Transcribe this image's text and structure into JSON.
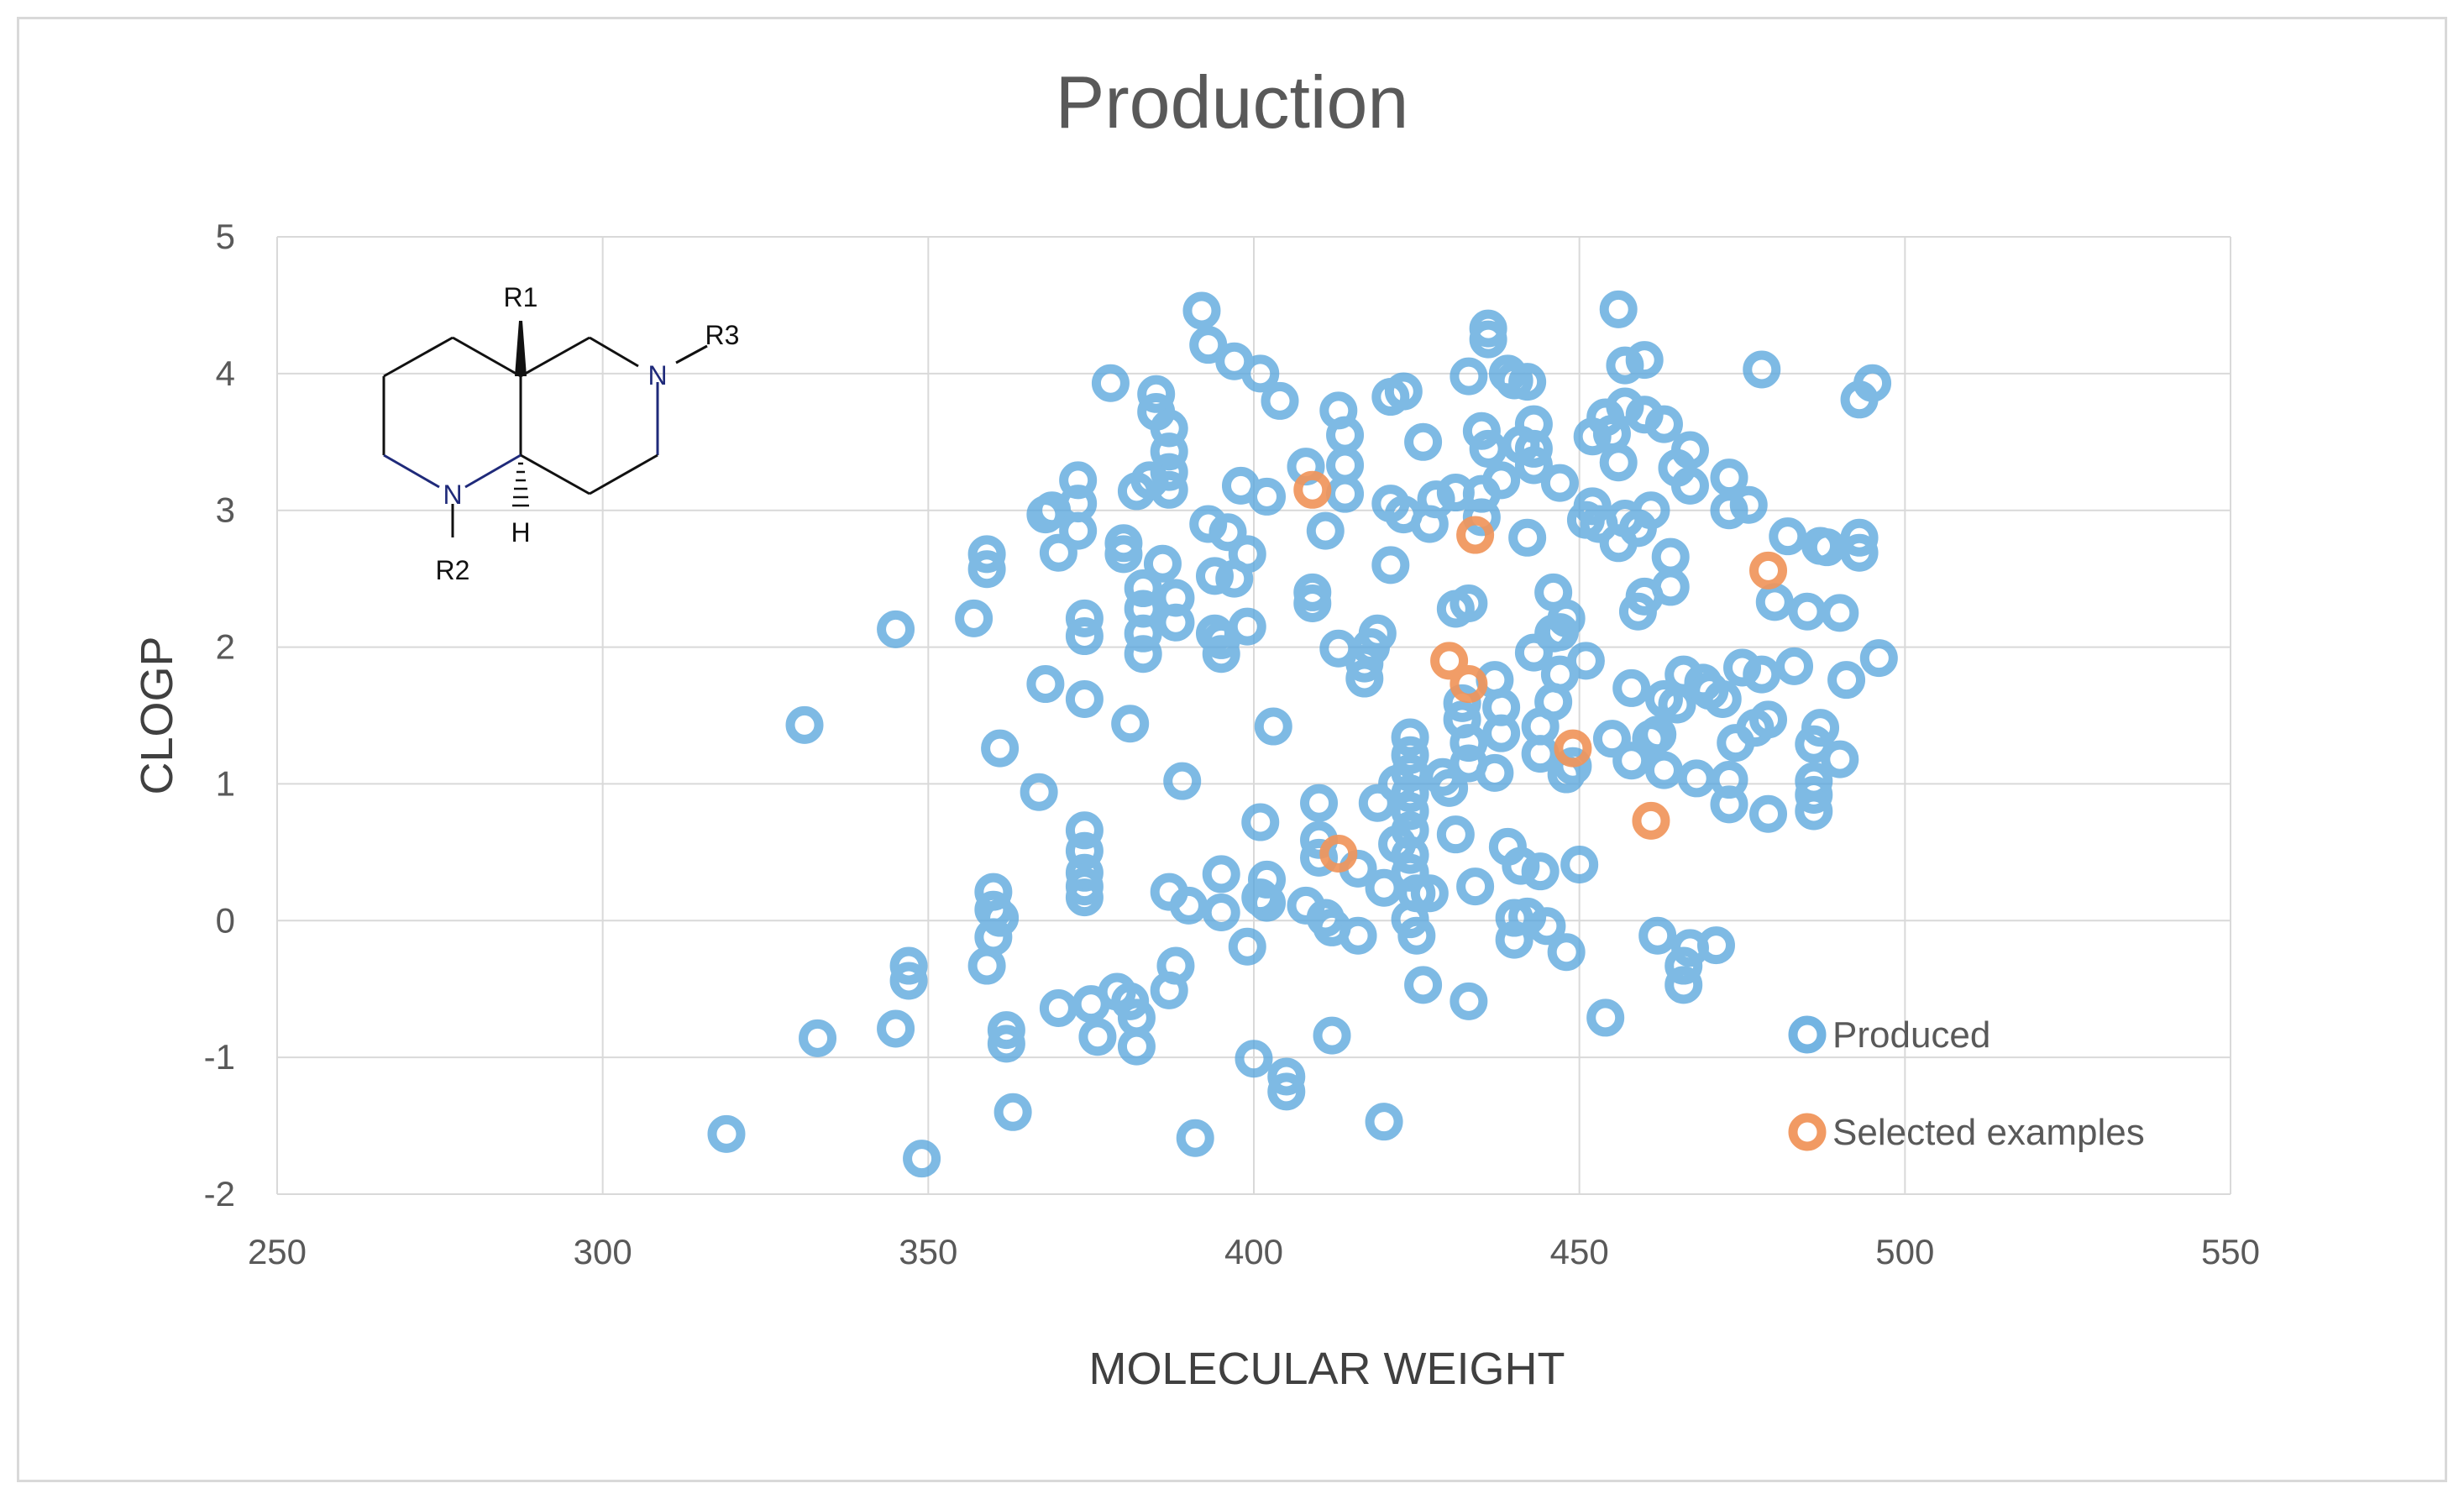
{
  "chart_data": {
    "type": "scatter",
    "title": "Production",
    "xlabel": "MOLECULAR WEIGHT",
    "ylabel": "CLOGP",
    "xlim": [
      250,
      550
    ],
    "ylim": [
      -2,
      5
    ],
    "xticks": [
      "250",
      "300",
      "350",
      "400",
      "450",
      "500",
      "550"
    ],
    "yticks": [
      "-2",
      "-1",
      "0",
      "1",
      "2",
      "3",
      "4",
      "5"
    ],
    "grid": true,
    "legend_position": "bottom-right",
    "colors": {
      "produced": "#5aa7dd",
      "selected": "#f0955b",
      "grid": "#d9d9d9"
    },
    "structure_labels": {
      "r1": "R1",
      "r2": "R2",
      "r3": "R3",
      "n1": "N",
      "n2": "N",
      "h": "H"
    },
    "series": [
      {
        "name": "Produced",
        "points": [
          [
            319,
            -1.56
          ],
          [
            331,
            1.43
          ],
          [
            333,
            -0.86
          ],
          [
            345,
            -0.79
          ],
          [
            345,
            2.13
          ],
          [
            347,
            -0.33
          ],
          [
            347,
            -0.44
          ],
          [
            349,
            -1.74
          ],
          [
            357,
            2.21
          ],
          [
            359,
            2.68
          ],
          [
            359,
            2.57
          ],
          [
            359,
            -0.33
          ],
          [
            360,
            0.21
          ],
          [
            360,
            0.08
          ],
          [
            360,
            -0.12
          ],
          [
            361,
            1.26
          ],
          [
            361,
            0.02
          ],
          [
            362,
            -0.8
          ],
          [
            362,
            -0.9
          ],
          [
            363,
            -1.4
          ],
          [
            367,
            0.94
          ],
          [
            368,
            1.73
          ],
          [
            368,
            2.97
          ],
          [
            369,
            3.0
          ],
          [
            370,
            -0.64
          ],
          [
            370,
            2.69
          ],
          [
            373,
            3.22
          ],
          [
            373,
            3.05
          ],
          [
            373,
            2.85
          ],
          [
            374,
            2.21
          ],
          [
            374,
            2.08
          ],
          [
            374,
            1.62
          ],
          [
            374,
            0.66
          ],
          [
            374,
            0.51
          ],
          [
            374,
            0.35
          ],
          [
            374,
            0.25
          ],
          [
            374,
            0.17
          ],
          [
            375,
            -0.61
          ],
          [
            376,
            -0.85
          ],
          [
            378,
            3.93
          ],
          [
            379,
            -0.52
          ],
          [
            380,
            2.76
          ],
          [
            380,
            2.68
          ],
          [
            381,
            1.44
          ],
          [
            381,
            -0.59
          ],
          [
            382,
            3.14
          ],
          [
            382,
            -0.71
          ],
          [
            382,
            -0.92
          ],
          [
            383,
            2.43
          ],
          [
            383,
            2.28
          ],
          [
            383,
            2.1
          ],
          [
            383,
            1.95
          ],
          [
            384,
            3.22
          ],
          [
            385,
            3.85
          ],
          [
            385,
            3.72
          ],
          [
            386,
            2.61
          ],
          [
            387,
            3.6
          ],
          [
            387,
            3.43
          ],
          [
            387,
            3.28
          ],
          [
            387,
            3.15
          ],
          [
            387,
            0.21
          ],
          [
            387,
            -0.51
          ],
          [
            388,
            -0.33
          ],
          [
            388,
            2.36
          ],
          [
            388,
            2.18
          ],
          [
            389,
            1.02
          ],
          [
            390,
            0.11
          ],
          [
            391,
            -1.59
          ],
          [
            392,
            4.46
          ],
          [
            393,
            4.21
          ],
          [
            393,
            2.9
          ],
          [
            394,
            2.52
          ],
          [
            394,
            2.1
          ],
          [
            395,
            2.05
          ],
          [
            395,
            1.95
          ],
          [
            395,
            0.34
          ],
          [
            395,
            0.06
          ],
          [
            396,
            2.84
          ],
          [
            397,
            2.5
          ],
          [
            397,
            4.09
          ],
          [
            398,
            3.18
          ],
          [
            399,
            2.68
          ],
          [
            399,
            2.15
          ],
          [
            399,
            -0.19
          ],
          [
            400,
            -1.01
          ],
          [
            401,
            0.72
          ],
          [
            401,
            0.17
          ],
          [
            401,
            4.0
          ],
          [
            402,
            3.1
          ],
          [
            402,
            0.3
          ],
          [
            402,
            0.13
          ],
          [
            403,
            1.42
          ],
          [
            404,
            3.8
          ],
          [
            405,
            -1.14
          ],
          [
            405,
            -1.25
          ],
          [
            408,
            3.32
          ],
          [
            408,
            0.11
          ],
          [
            409,
            2.4
          ],
          [
            409,
            2.32
          ],
          [
            410,
            0.86
          ],
          [
            410,
            0.59
          ],
          [
            410,
            0.46
          ],
          [
            411,
            2.85
          ],
          [
            411,
            0.02
          ],
          [
            412,
            -0.05
          ],
          [
            412,
            -0.84
          ],
          [
            413,
            1.99
          ],
          [
            413,
            3.73
          ],
          [
            414,
            3.55
          ],
          [
            414,
            3.33
          ],
          [
            414,
            3.12
          ],
          [
            416,
            0.38
          ],
          [
            416,
            -0.11
          ],
          [
            417,
            1.88
          ],
          [
            417,
            1.77
          ],
          [
            418,
            2.0
          ],
          [
            419,
            2.1
          ],
          [
            419,
            0.86
          ],
          [
            420,
            -1.47
          ],
          [
            420,
            0.24
          ],
          [
            421,
            3.05
          ],
          [
            421,
            2.6
          ],
          [
            421,
            3.83
          ],
          [
            422,
            0.56
          ],
          [
            422,
            1.0
          ],
          [
            423,
            3.87
          ],
          [
            423,
            2.97
          ],
          [
            424,
            1.34
          ],
          [
            424,
            1.21
          ],
          [
            424,
            1.08
          ],
          [
            424,
            0.93
          ],
          [
            424,
            0.8
          ],
          [
            424,
            0.66
          ],
          [
            424,
            0.48
          ],
          [
            424,
            0.35
          ],
          [
            424,
            0.01
          ],
          [
            425,
            -0.11
          ],
          [
            425,
            0.2
          ],
          [
            426,
            3.5
          ],
          [
            426,
            -0.47
          ],
          [
            427,
            2.9
          ],
          [
            427,
            0.2
          ],
          [
            428,
            3.08
          ],
          [
            429,
            1.05
          ],
          [
            430,
            0.97
          ],
          [
            431,
            0.63
          ],
          [
            431,
            3.13
          ],
          [
            431,
            2.28
          ],
          [
            432,
            1.59
          ],
          [
            432,
            1.47
          ],
          [
            433,
            1.3
          ],
          [
            433,
            1.15
          ],
          [
            433,
            3.98
          ],
          [
            433,
            2.32
          ],
          [
            433,
            -0.59
          ],
          [
            434,
            0.25
          ],
          [
            435,
            2.95
          ],
          [
            435,
            3.12
          ],
          [
            435,
            3.58
          ],
          [
            436,
            3.45
          ],
          [
            436,
            4.33
          ],
          [
            436,
            4.25
          ],
          [
            437,
            1.76
          ],
          [
            437,
            1.08
          ],
          [
            438,
            1.56
          ],
          [
            438,
            1.37
          ],
          [
            438,
            3.22
          ],
          [
            439,
            0.54
          ],
          [
            439,
            4.0
          ],
          [
            440,
            3.95
          ],
          [
            440,
            0.02
          ],
          [
            440,
            -0.14
          ],
          [
            441,
            0.4
          ],
          [
            441,
            3.48
          ],
          [
            442,
            3.94
          ],
          [
            442,
            0.03
          ],
          [
            442,
            2.8
          ],
          [
            443,
            3.63
          ],
          [
            443,
            3.45
          ],
          [
            443,
            3.33
          ],
          [
            443,
            1.96
          ],
          [
            444,
            1.42
          ],
          [
            444,
            1.22
          ],
          [
            444,
            0.36
          ],
          [
            445,
            -0.04
          ],
          [
            446,
            2.4
          ],
          [
            446,
            2.1
          ],
          [
            446,
            1.6
          ],
          [
            447,
            1.8
          ],
          [
            447,
            3.2
          ],
          [
            447,
            2.11
          ],
          [
            448,
            2.21
          ],
          [
            448,
            1.07
          ],
          [
            448,
            -0.23
          ],
          [
            449,
            1.13
          ],
          [
            450,
            0.41
          ],
          [
            451,
            2.93
          ],
          [
            451,
            1.9
          ],
          [
            452,
            3.54
          ],
          [
            452,
            3.03
          ],
          [
            453,
            2.9
          ],
          [
            454,
            3.68
          ],
          [
            454,
            -0.71
          ],
          [
            455,
            3.56
          ],
          [
            455,
            1.33
          ],
          [
            456,
            4.47
          ],
          [
            456,
            3.35
          ],
          [
            456,
            2.76
          ],
          [
            457,
            4.06
          ],
          [
            457,
            3.76
          ],
          [
            457,
            2.94
          ],
          [
            458,
            1.7
          ],
          [
            458,
            1.17
          ],
          [
            459,
            2.87
          ],
          [
            459,
            2.26
          ],
          [
            460,
            2.37
          ],
          [
            460,
            4.1
          ],
          [
            460,
            3.7
          ],
          [
            461,
            3.0
          ],
          [
            461,
            1.33
          ],
          [
            462,
            1.36
          ],
          [
            462,
            -0.11
          ],
          [
            463,
            3.63
          ],
          [
            463,
            1.1
          ],
          [
            463,
            1.62
          ],
          [
            464,
            2.66
          ],
          [
            464,
            2.44
          ],
          [
            465,
            3.31
          ],
          [
            465,
            1.58
          ],
          [
            466,
            1.8
          ],
          [
            466,
            -0.33
          ],
          [
            466,
            -0.47
          ],
          [
            467,
            3.44
          ],
          [
            467,
            3.18
          ],
          [
            467,
            -0.2
          ],
          [
            468,
            1.04
          ],
          [
            469,
            1.74
          ],
          [
            470,
            1.68
          ],
          [
            471,
            -0.18
          ],
          [
            472,
            1.62
          ],
          [
            473,
            3.24
          ],
          [
            473,
            3.0
          ],
          [
            473,
            1.03
          ],
          [
            473,
            0.85
          ],
          [
            474,
            1.3
          ],
          [
            475,
            1.85
          ],
          [
            476,
            3.04
          ],
          [
            477,
            1.41
          ],
          [
            478,
            1.8
          ],
          [
            478,
            4.03
          ],
          [
            479,
            1.47
          ],
          [
            479,
            0.78
          ],
          [
            480,
            2.33
          ],
          [
            482,
            2.81
          ],
          [
            483,
            1.86
          ],
          [
            485,
            2.26
          ],
          [
            486,
            1.29
          ],
          [
            486,
            1.02
          ],
          [
            486,
            0.92
          ],
          [
            486,
            0.8
          ],
          [
            487,
            2.74
          ],
          [
            487,
            1.41
          ],
          [
            488,
            2.73
          ],
          [
            490,
            2.25
          ],
          [
            490,
            1.18
          ],
          [
            491,
            1.76
          ],
          [
            493,
            3.81
          ],
          [
            493,
            2.8
          ],
          [
            493,
            2.69
          ],
          [
            495,
            3.93
          ],
          [
            496,
            1.92
          ]
        ]
      },
      {
        "name": "Selected examples",
        "points": [
          [
            409,
            3.15
          ],
          [
            413,
            0.49
          ],
          [
            430,
            1.9
          ],
          [
            433,
            1.73
          ],
          [
            434,
            2.82
          ],
          [
            449,
            1.26
          ],
          [
            461,
            0.73
          ],
          [
            479,
            2.56
          ]
        ]
      }
    ]
  }
}
